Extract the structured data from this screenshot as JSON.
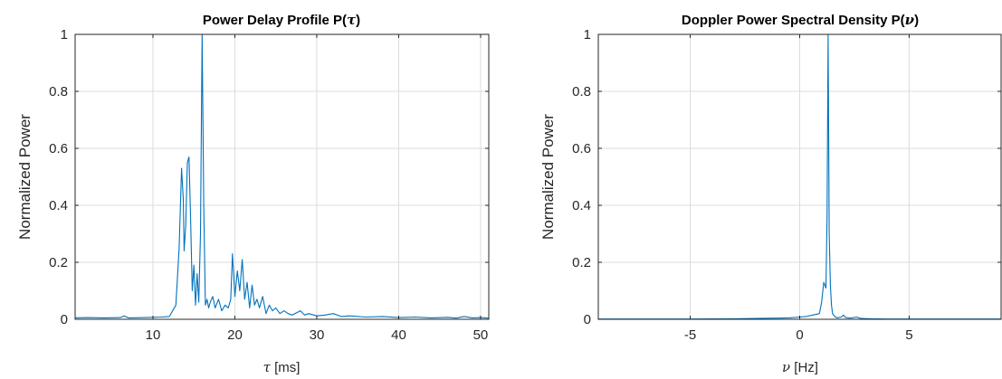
{
  "chart_data": [
    {
      "type": "line",
      "title": "Power Delay Profile P(",
      "title_symbol": "τ",
      "title_suffix": ")",
      "xlabel_symbol": "τ",
      "xlabel": " [ms]",
      "ylabel": "Normalized Power",
      "xlim": [
        0.5,
        51
      ],
      "ylim": [
        0,
        1
      ],
      "xticks": [
        10,
        20,
        30,
        40,
        50
      ],
      "xtick_labels": [
        "10",
        "20",
        "30",
        "40",
        "50"
      ],
      "yticks": [
        0,
        0.2,
        0.4,
        0.6,
        0.8,
        1
      ],
      "ytick_labels": [
        "0",
        "0.2",
        "0.4",
        "0.6",
        "0.8",
        "1"
      ],
      "grid": true,
      "color": "#0072BD",
      "series": [
        {
          "x": [
            0.5,
            2,
            4,
            6,
            6.5,
            7,
            9,
            11,
            12,
            12.8,
            13.2,
            13.5,
            13.7,
            13.8,
            14.0,
            14.2,
            14.4,
            14.6,
            14.8,
            15.0,
            15.2,
            15.4,
            15.6,
            15.8,
            16.0,
            16.2,
            16.4,
            16.6,
            16.8,
            17.0,
            17.3,
            17.6,
            18.0,
            18.4,
            18.8,
            19.2,
            19.5,
            19.7,
            20.0,
            20.3,
            20.6,
            20.9,
            21.2,
            21.5,
            21.8,
            22.1,
            22.4,
            22.7,
            23.0,
            23.4,
            23.8,
            24.2,
            24.6,
            25.0,
            25.5,
            26.0,
            26.5,
            27,
            28,
            28.5,
            29,
            30,
            31,
            32,
            33,
            34,
            36,
            38,
            40,
            42,
            44,
            46,
            47,
            48,
            49,
            50,
            51
          ],
          "y": [
            0.005,
            0.006,
            0.005,
            0.006,
            0.012,
            0.005,
            0.006,
            0.008,
            0.01,
            0.05,
            0.25,
            0.53,
            0.42,
            0.24,
            0.33,
            0.55,
            0.57,
            0.35,
            0.1,
            0.19,
            0.05,
            0.16,
            0.06,
            0.3,
            1.0,
            0.4,
            0.05,
            0.07,
            0.04,
            0.06,
            0.08,
            0.04,
            0.07,
            0.03,
            0.05,
            0.04,
            0.07,
            0.23,
            0.08,
            0.17,
            0.1,
            0.21,
            0.07,
            0.13,
            0.04,
            0.12,
            0.05,
            0.07,
            0.04,
            0.08,
            0.02,
            0.05,
            0.03,
            0.04,
            0.02,
            0.03,
            0.02,
            0.015,
            0.03,
            0.015,
            0.02,
            0.012,
            0.015,
            0.02,
            0.01,
            0.012,
            0.008,
            0.01,
            0.006,
            0.008,
            0.005,
            0.007,
            0.004,
            0.01,
            0.005,
            0.006,
            0.004
          ]
        }
      ]
    },
    {
      "type": "line",
      "title": "Doppler Power Spectral Density P(",
      "title_symbol": "ν",
      "title_suffix": ")",
      "xlabel_symbol": "ν",
      "xlabel": " [Hz]",
      "ylabel": "Normalized Power",
      "xlim": [
        -9.2,
        9.2
      ],
      "ylim": [
        0,
        1
      ],
      "xticks": [
        -5,
        0,
        5
      ],
      "xtick_labels": [
        "-5",
        "0",
        "5"
      ],
      "yticks": [
        0,
        0.2,
        0.4,
        0.6,
        0.8,
        1
      ],
      "ytick_labels": [
        "0",
        "0.2",
        "0.4",
        "0.6",
        "0.8",
        "1"
      ],
      "grid": true,
      "color": "#0072BD",
      "series": [
        {
          "x": [
            -9.2,
            -7,
            -5,
            -3,
            -2,
            -1,
            -0.5,
            0,
            0.3,
            0.6,
            0.9,
            1.0,
            1.1,
            1.2,
            1.25,
            1.3,
            1.35,
            1.4,
            1.45,
            1.5,
            1.6,
            1.7,
            1.9,
            2.0,
            2.1,
            2.3,
            2.6,
            2.8,
            3.2,
            4,
            6,
            9.2
          ],
          "y": [
            0.001,
            0.001,
            0.001,
            0.002,
            0.003,
            0.004,
            0.005,
            0.008,
            0.01,
            0.015,
            0.02,
            0.06,
            0.13,
            0.11,
            0.35,
            1.0,
            0.3,
            0.12,
            0.05,
            0.02,
            0.01,
            0.005,
            0.008,
            0.015,
            0.006,
            0.004,
            0.008,
            0.003,
            0.002,
            0.001,
            0.001,
            0.001
          ]
        }
      ]
    }
  ]
}
